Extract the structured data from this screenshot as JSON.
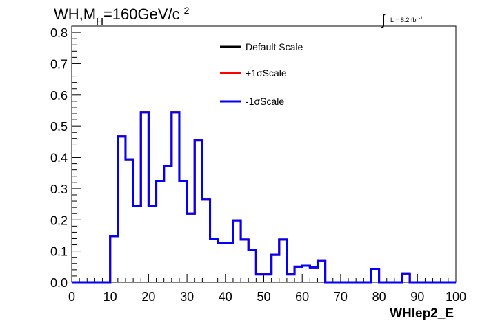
{
  "title": {
    "prefix": "WH,M",
    "subscript": "H",
    "middle": "=160GeV/c",
    "superscript": "2"
  },
  "lumi": {
    "integral_sign": "∫",
    "text": "L = 8.2 fb",
    "superscript": "-1"
  },
  "chart_data": {
    "type": "histogram",
    "xlabel": "WHlep2_E",
    "ylabel": "",
    "xlim": [
      0,
      100
    ],
    "ylim": [
      0,
      0.82
    ],
    "x_ticks": [
      0,
      10,
      20,
      30,
      40,
      50,
      60,
      70,
      80,
      90,
      100
    ],
    "y_ticks": [
      0.0,
      0.1,
      0.2,
      0.3,
      0.4,
      0.5,
      0.6,
      0.7,
      0.8
    ],
    "y_tick_labels": [
      "0.0",
      "0.1",
      "0.2",
      "0.3",
      "0.4",
      "0.5",
      "0.6",
      "0.7",
      "0.8"
    ],
    "bin_edges": [
      0,
      2,
      4,
      6,
      8,
      10,
      12,
      14,
      16,
      18,
      20,
      22,
      24,
      26,
      28,
      30,
      32,
      34,
      36,
      38,
      40,
      42,
      44,
      46,
      48,
      50,
      52,
      54,
      56,
      58,
      60,
      62,
      64,
      66,
      68,
      70,
      72,
      74,
      76,
      78,
      80,
      82,
      84,
      86,
      88,
      90,
      92,
      94,
      96,
      98,
      100
    ],
    "legend": {
      "position": "top-center",
      "entries": [
        {
          "label": "Default Scale",
          "color": "#000000"
        },
        {
          "label": "+1σScale",
          "color": "#ff0000"
        },
        {
          "label": "-1σScale",
          "color": "#0000ff"
        }
      ]
    },
    "series": [
      {
        "name": "Default Scale",
        "color": "#000000",
        "values": [
          0,
          0,
          0,
          0,
          0,
          0.148,
          0.468,
          0.392,
          0.245,
          0.545,
          0.245,
          0.323,
          0.372,
          0.545,
          0.323,
          0.22,
          0.455,
          0.265,
          0.14,
          0.125,
          0.125,
          0.198,
          0.137,
          0.103,
          0.025,
          0.025,
          0.088,
          0.137,
          0.025,
          0.05,
          0.053,
          0.048,
          0.07,
          0,
          0,
          0,
          0,
          0,
          0,
          0.043,
          0,
          0,
          0,
          0.028,
          0,
          0,
          0,
          0,
          0,
          0
        ]
      },
      {
        "name": "+1σScale",
        "color": "#ff0000",
        "values": [
          0,
          0,
          0,
          0,
          0,
          0.148,
          0.468,
          0.392,
          0.245,
          0.545,
          0.245,
          0.323,
          0.372,
          0.545,
          0.323,
          0.22,
          0.455,
          0.265,
          0.14,
          0.125,
          0.125,
          0.198,
          0.137,
          0.103,
          0.025,
          0.025,
          0.088,
          0.137,
          0.025,
          0.05,
          0.053,
          0.048,
          0.07,
          0,
          0,
          0,
          0,
          0,
          0,
          0.043,
          0,
          0,
          0,
          0.028,
          0,
          0,
          0,
          0,
          0,
          0
        ]
      },
      {
        "name": "-1σScale",
        "color": "#0000ff",
        "values": [
          0,
          0,
          0,
          0,
          0,
          0.148,
          0.468,
          0.392,
          0.245,
          0.545,
          0.245,
          0.323,
          0.372,
          0.545,
          0.323,
          0.22,
          0.455,
          0.265,
          0.14,
          0.125,
          0.125,
          0.198,
          0.137,
          0.103,
          0.025,
          0.025,
          0.088,
          0.137,
          0.025,
          0.05,
          0.053,
          0.048,
          0.07,
          0,
          0,
          0,
          0,
          0,
          0,
          0.043,
          0,
          0,
          0,
          0.028,
          0,
          0,
          0,
          0,
          0,
          0
        ]
      }
    ]
  }
}
